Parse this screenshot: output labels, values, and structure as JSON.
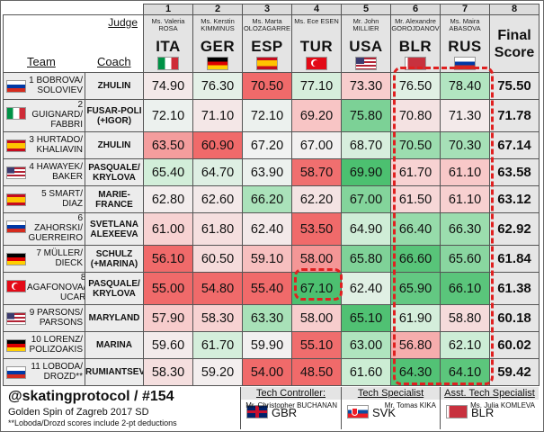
{
  "header": {
    "judge_label": "Judge",
    "team_label": "Team",
    "coach_label": "Coach",
    "final_label": "Final Score",
    "column_numbers": [
      "1",
      "2",
      "3",
      "4",
      "5",
      "6",
      "7",
      "8"
    ]
  },
  "judges": [
    {
      "code": "ITA",
      "name": "Ms. Valeria ROSA",
      "flag": "ita-flag"
    },
    {
      "code": "GER",
      "name": "Ms. Kerstin KIMMINUS",
      "flag": "ger-flag"
    },
    {
      "code": "ESP",
      "name": "Ms. Marta OLOZAGARRE",
      "flag": "esp-flag"
    },
    {
      "code": "TUR",
      "name": "Ms. Ece ESEN",
      "flag": "tur-flag"
    },
    {
      "code": "USA",
      "name": "Mr. John MILLIER",
      "flag": "usa-flag"
    },
    {
      "code": "BLR",
      "name": "Mr. Alexandre GOROJDANOV",
      "flag": "blr-flag"
    },
    {
      "code": "RUS",
      "name": "Ms. Maira ABASOVA",
      "flag": "rus-flag"
    }
  ],
  "teams": [
    {
      "team": "1 BOBROVA/ SOLOVIEV",
      "coach": "ZHULIN",
      "flag": "rus-flag",
      "scores": [
        "74.90",
        "76.30",
        "70.50",
        "77.10",
        "73.30",
        "76.50",
        "78.40"
      ],
      "final": "75.50"
    },
    {
      "team": "2 GUIGNARD/ FABBRI",
      "coach": "FUSAR-POLI (+IGOR)",
      "flag": "ita-flag",
      "scores": [
        "72.10",
        "71.10",
        "72.10",
        "69.20",
        "75.80",
        "70.80",
        "71.30"
      ],
      "final": "71.78"
    },
    {
      "team": "3 HURTADO/ KHALIAVIN",
      "coach": "ZHULIN",
      "flag": "esp-flag",
      "scores": [
        "63.50",
        "60.90",
        "67.20",
        "67.00",
        "68.70",
        "70.50",
        "70.30"
      ],
      "final": "67.14"
    },
    {
      "team": "4 HAWAYEK/ BAKER",
      "coach": "PASQUALE/ KRYLOVA",
      "flag": "usa-flag",
      "scores": [
        "65.40",
        "64.70",
        "63.90",
        "58.70",
        "69.90",
        "61.70",
        "61.10"
      ],
      "final": "63.58"
    },
    {
      "team": "5 SMART/ DIAZ",
      "coach": "MARIE- FRANCE",
      "flag": "esp-flag",
      "scores": [
        "62.80",
        "62.60",
        "66.20",
        "62.20",
        "67.00",
        "61.50",
        "61.10"
      ],
      "final": "63.12"
    },
    {
      "team": "6 ZAHORSKI/ GUERREIRO",
      "coach": "SVETLANA ALEXEEVA",
      "flag": "rus-flag",
      "scores": [
        "61.00",
        "61.80",
        "62.40",
        "53.50",
        "64.90",
        "66.40",
        "66.30"
      ],
      "final": "62.92"
    },
    {
      "team": "7 MÜLLER/ DIECK",
      "coach": "SCHULZ (+MARINA)",
      "flag": "ger-flag",
      "scores": [
        "56.10",
        "60.50",
        "59.10",
        "58.00",
        "65.80",
        "66.60",
        "65.60"
      ],
      "final": "61.84"
    },
    {
      "team": "8 AGAFONOVA/ UCAR",
      "coach": "PASQUALE/ KRYLOVA",
      "flag": "tur-flag",
      "scores": [
        "55.00",
        "54.80",
        "55.40",
        "67.10",
        "62.40",
        "65.90",
        "66.10"
      ],
      "final": "61.38"
    },
    {
      "team": "9 PARSONS/ PARSONS",
      "coach": "MARYLAND",
      "flag": "usa-flag",
      "scores": [
        "57.90",
        "58.30",
        "63.30",
        "58.00",
        "65.10",
        "61.90",
        "58.80"
      ],
      "final": "60.18"
    },
    {
      "team": "10 LORENZ/ POLIZOAKIS",
      "coach": "MARINA",
      "flag": "ger-flag",
      "scores": [
        "59.60",
        "61.70",
        "59.90",
        "55.10",
        "63.00",
        "56.80",
        "62.10"
      ],
      "final": "60.02"
    },
    {
      "team": "11 LOBODA/ DROZD**",
      "coach": "RUMIANTSEVA",
      "flag": "rus-flag",
      "scores": [
        "58.30",
        "59.20",
        "54.00",
        "48.50",
        "61.60",
        "64.30",
        "64.10"
      ],
      "final": "59.42"
    }
  ],
  "footer": {
    "handle": "@skatingprotocol / #154",
    "event": "Golden Spin of Zagreb 2017 SD",
    "note": "**Loboda/Drozd scores include 2-pt deductions",
    "tech": [
      {
        "title": "Tech Controller:",
        "code": "GBR",
        "name": "Mr. Christopher BUCHANAN",
        "flag": "gbr-flag"
      },
      {
        "title": "Tech Specialist",
        "code": "SVK",
        "name": "Mr. Tomas KIKA",
        "flag": "svk-flag"
      },
      {
        "title": "Asst. Tech Specialist",
        "code": "BLR",
        "name": "Ms. Julia KOMLEVA",
        "flag": "blr-flag"
      }
    ]
  },
  "colors": {
    "red_strong": "#f06a6a",
    "red_light": "#f8c8c8",
    "neutral": "#f2f2f2",
    "green_light": "#c6ecd0",
    "green_strong": "#4cc070",
    "highlight": "#e02020"
  }
}
